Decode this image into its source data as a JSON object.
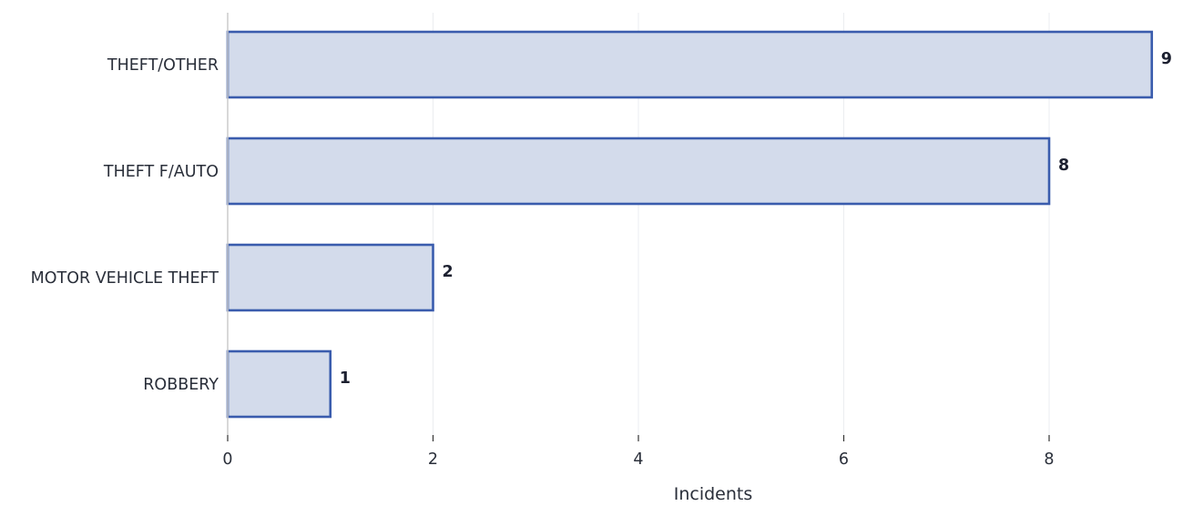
{
  "chart_data": {
    "type": "bar",
    "orientation": "horizontal",
    "categories": [
      "THEFT/OTHER",
      "THEFT F/AUTO",
      "MOTOR VEHICLE THEFT",
      "ROBBERY"
    ],
    "values": [
      9,
      8,
      2,
      1
    ],
    "data_labels": [
      "9",
      "8",
      "2",
      "1"
    ],
    "title": "",
    "xlabel": "Incidents",
    "ylabel": "",
    "xlim": [
      0,
      9.1
    ],
    "xticks": [
      0,
      2,
      4,
      6,
      8
    ],
    "xtick_labels": [
      "0",
      "2",
      "4",
      "6",
      "8"
    ],
    "grid": "vertical",
    "legend": "none",
    "colors": {
      "bar_fill": "#d3dbeb",
      "bar_stroke": "#3a5cad",
      "grid": "#ebedf0",
      "axis": "#cccccc",
      "text": "#2a2f3a"
    }
  }
}
